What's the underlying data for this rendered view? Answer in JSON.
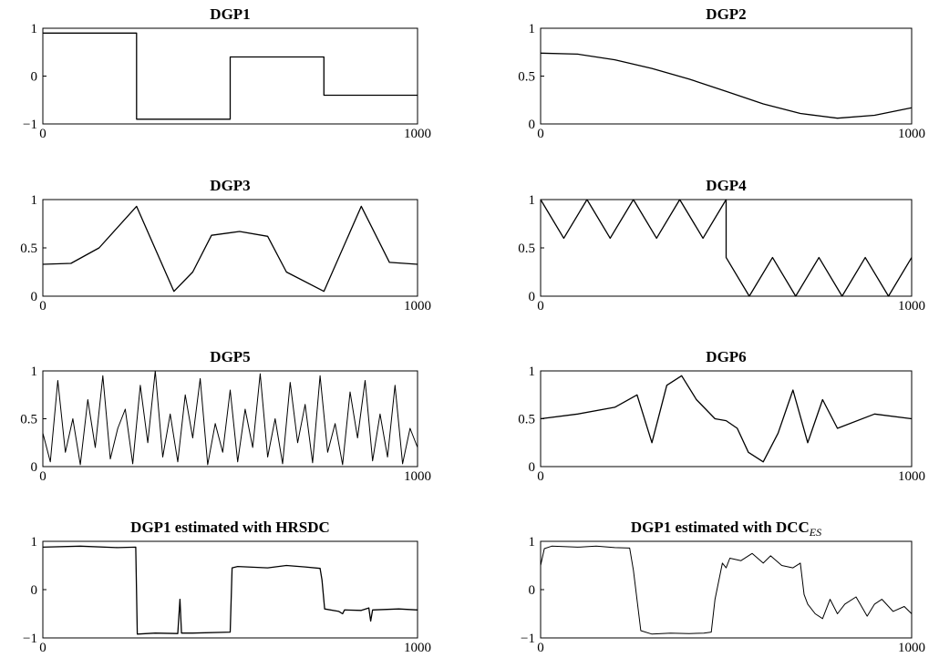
{
  "chart_data": [
    {
      "id": "dgp1",
      "type": "line",
      "title": "DGP1",
      "xlim": [
        0,
        1000
      ],
      "ylim": [
        -1,
        1
      ],
      "xticks": [
        "0",
        "1000"
      ],
      "yticks": [
        {
          "value": 1,
          "label": "1"
        },
        {
          "value": 0,
          "label": "0"
        },
        {
          "value": -1,
          "label": "−1"
        }
      ],
      "series": [
        {
          "x": [
            0,
            250,
            250,
            500,
            500,
            750,
            750,
            1000
          ],
          "y": [
            0.9,
            0.9,
            -0.9,
            -0.9,
            0.4,
            0.4,
            -0.4,
            -0.4
          ]
        }
      ]
    },
    {
      "id": "dgp2",
      "type": "line",
      "title": "DGP2",
      "xlim": [
        0,
        1000
      ],
      "ylim": [
        0,
        1
      ],
      "xticks": [
        "0",
        "1000"
      ],
      "yticks": [
        {
          "value": 1,
          "label": "1"
        },
        {
          "value": 0.5,
          "label": "0.5"
        },
        {
          "value": 0,
          "label": "0"
        }
      ],
      "series": [
        {
          "x": [
            0,
            100,
            200,
            300,
            400,
            500,
            600,
            700,
            800,
            900,
            1000
          ],
          "y": [
            0.74,
            0.73,
            0.67,
            0.58,
            0.47,
            0.34,
            0.21,
            0.11,
            0.06,
            0.09,
            0.17
          ]
        }
      ]
    },
    {
      "id": "dgp3",
      "type": "line",
      "title": "DGP3",
      "xlim": [
        0,
        1000
      ],
      "ylim": [
        0,
        1
      ],
      "xticks": [
        "0",
        "1000"
      ],
      "yticks": [
        {
          "value": 1,
          "label": "1"
        },
        {
          "value": 0.5,
          "label": "0.5"
        },
        {
          "value": 0,
          "label": "0"
        }
      ],
      "series": [
        {
          "x": [
            0,
            75,
            150,
            250,
            350,
            400,
            450,
            525,
            600,
            650,
            750,
            850,
            925,
            1000
          ],
          "y": [
            0.33,
            0.34,
            0.5,
            0.93,
            0.05,
            0.25,
            0.63,
            0.67,
            0.62,
            0.25,
            0.05,
            0.93,
            0.35,
            0.33
          ]
        }
      ]
    },
    {
      "id": "dgp4",
      "type": "line",
      "title": "DGP4",
      "xlim": [
        0,
        1000
      ],
      "ylim": [
        0,
        1
      ],
      "xticks": [
        "0",
        "1000"
      ],
      "yticks": [
        {
          "value": 1,
          "label": "1"
        },
        {
          "value": 0.5,
          "label": "0.5"
        },
        {
          "value": 0,
          "label": "0"
        }
      ],
      "series": [
        {
          "x": [
            0,
            62.5,
            125,
            187.5,
            250,
            312.5,
            375,
            437.5,
            500,
            500,
            562.5,
            625,
            687.5,
            750,
            812.5,
            875,
            937.5,
            1000
          ],
          "y": [
            1,
            0.6,
            1,
            0.6,
            1,
            0.6,
            1,
            0.6,
            1,
            0.4,
            0,
            0.4,
            0,
            0.4,
            0,
            0.4,
            0,
            0.4
          ]
        }
      ]
    },
    {
      "id": "dgp5",
      "type": "line",
      "title": "DGP5",
      "xlim": [
        0,
        1000
      ],
      "ylim": [
        0,
        1
      ],
      "xticks": [
        "0",
        "1000"
      ],
      "yticks": [
        {
          "value": 1,
          "label": "1"
        },
        {
          "value": 0.5,
          "label": "0.5"
        },
        {
          "value": 0,
          "label": "0"
        }
      ],
      "series": [
        {
          "x": [
            0,
            20,
            40,
            60,
            80,
            100,
            120,
            140,
            160,
            180,
            200,
            220,
            240,
            260,
            280,
            300,
            320,
            340,
            360,
            380,
            400,
            420,
            440,
            460,
            480,
            500,
            520,
            540,
            560,
            580,
            600,
            620,
            640,
            660,
            680,
            700,
            720,
            740,
            760,
            780,
            800,
            820,
            840,
            860,
            880,
            900,
            920,
            940,
            960,
            980,
            1000
          ],
          "y": [
            0.35,
            0.05,
            0.9,
            0.15,
            0.5,
            0.02,
            0.7,
            0.2,
            0.95,
            0.08,
            0.4,
            0.6,
            0.03,
            0.85,
            0.25,
            1.0,
            0.1,
            0.55,
            0.05,
            0.75,
            0.3,
            0.92,
            0.02,
            0.45,
            0.15,
            0.8,
            0.05,
            0.6,
            0.2,
            0.97,
            0.1,
            0.5,
            0.03,
            0.88,
            0.25,
            0.65,
            0.04,
            0.95,
            0.15,
            0.45,
            0.02,
            0.78,
            0.3,
            0.9,
            0.06,
            0.55,
            0.1,
            0.85,
            0.03,
            0.4,
            0.2
          ]
        }
      ]
    },
    {
      "id": "dgp6",
      "type": "line",
      "title": "DGP6",
      "xlim": [
        0,
        1000
      ],
      "ylim": [
        0,
        1
      ],
      "xticks": [
        "0",
        "1000"
      ],
      "yticks": [
        {
          "value": 1,
          "label": "1"
        },
        {
          "value": 0.5,
          "label": "0.5"
        },
        {
          "value": 0,
          "label": "0"
        }
      ],
      "series": [
        {
          "x": [
            0,
            100,
            200,
            260,
            300,
            340,
            380,
            420,
            470,
            500,
            530,
            560,
            600,
            640,
            680,
            720,
            760,
            800,
            900,
            1000
          ],
          "y": [
            0.5,
            0.55,
            0.62,
            0.75,
            0.25,
            0.85,
            0.95,
            0.7,
            0.5,
            0.48,
            0.4,
            0.15,
            0.05,
            0.35,
            0.8,
            0.25,
            0.7,
            0.4,
            0.55,
            0.5
          ]
        }
      ]
    },
    {
      "id": "dgp1-hrsdc",
      "type": "line",
      "title": "DGP1 estimated with HRSDC",
      "title_sub": "",
      "xlim": [
        0,
        1000
      ],
      "ylim": [
        -1,
        1
      ],
      "xticks": [
        "0",
        "1000"
      ],
      "yticks": [
        {
          "value": 1,
          "label": "1"
        },
        {
          "value": 0,
          "label": "0"
        },
        {
          "value": -1,
          "label": "−1"
        }
      ],
      "series": [
        {
          "x": [
            0,
            100,
            200,
            248,
            252,
            300,
            360,
            366,
            370,
            400,
            500,
            505,
            520,
            600,
            650,
            700,
            740,
            745,
            752,
            790,
            800,
            805,
            850,
            870,
            875,
            880,
            950,
            1000
          ],
          "y": [
            0.88,
            0.9,
            0.87,
            0.88,
            -0.92,
            -0.9,
            -0.91,
            -0.2,
            -0.9,
            -0.9,
            -0.88,
            0.45,
            0.48,
            0.45,
            0.5,
            0.47,
            0.44,
            0.2,
            -0.4,
            -0.45,
            -0.5,
            -0.42,
            -0.43,
            -0.38,
            -0.65,
            -0.42,
            -0.4,
            -0.42
          ]
        }
      ]
    },
    {
      "id": "dgp1-dcc",
      "type": "line",
      "title": "DGP1 estimated with DCC",
      "title_sub": "ES",
      "xlim": [
        0,
        1000
      ],
      "ylim": [
        -1,
        1
      ],
      "xticks": [
        "0",
        "1000"
      ],
      "yticks": [
        {
          "value": 1,
          "label": "1"
        },
        {
          "value": 0,
          "label": "0"
        },
        {
          "value": -1,
          "label": "−1"
        }
      ],
      "series": [
        {
          "x": [
            0,
            10,
            30,
            100,
            150,
            200,
            240,
            250,
            270,
            300,
            350,
            400,
            440,
            460,
            470,
            490,
            500,
            510,
            540,
            570,
            600,
            620,
            650,
            680,
            700,
            710,
            720,
            740,
            760,
            780,
            800,
            820,
            850,
            880,
            900,
            920,
            950,
            980,
            1000
          ],
          "y": [
            0.5,
            0.85,
            0.9,
            0.88,
            0.9,
            0.87,
            0.86,
            0.4,
            -0.85,
            -0.92,
            -0.9,
            -0.91,
            -0.9,
            -0.88,
            -0.2,
            0.55,
            0.45,
            0.65,
            0.6,
            0.75,
            0.55,
            0.7,
            0.5,
            0.45,
            0.55,
            -0.1,
            -0.3,
            -0.5,
            -0.6,
            -0.2,
            -0.5,
            -0.3,
            -0.15,
            -0.55,
            -0.3,
            -0.2,
            -0.45,
            -0.35,
            -0.5
          ]
        }
      ]
    }
  ]
}
